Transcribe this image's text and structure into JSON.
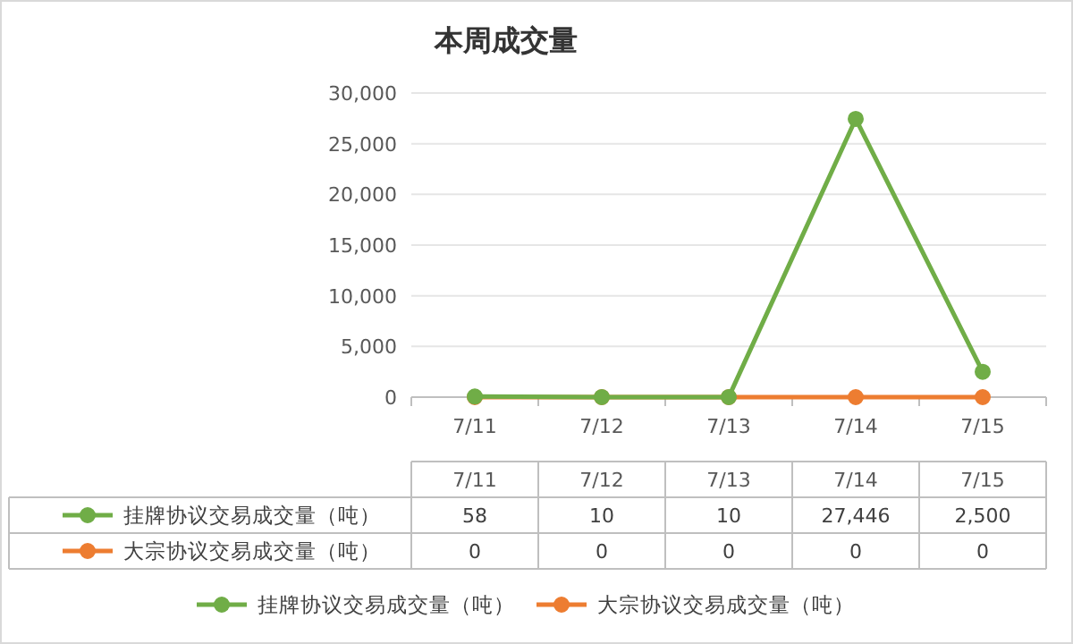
{
  "chart_data": {
    "type": "line",
    "title": "本周成交量",
    "categories": [
      "7/11",
      "7/12",
      "7/13",
      "7/14",
      "7/15"
    ],
    "series": [
      {
        "name": "挂牌协议交易成交量（吨）",
        "color": "#70ad47",
        "values": [
          58,
          10,
          10,
          27446,
          2500
        ],
        "value_labels": [
          "58",
          "10",
          "10",
          "27,446",
          "2,500"
        ]
      },
      {
        "name": "大宗协议交易成交量（吨）",
        "color": "#ed7d31",
        "values": [
          0,
          0,
          0,
          0,
          0
        ],
        "value_labels": [
          "0",
          "0",
          "0",
          "0",
          "0"
        ]
      }
    ],
    "ylim": [
      0,
      30000
    ],
    "yticks": [
      {
        "value": 0,
        "label": "0"
      },
      {
        "value": 5000,
        "label": "5,000"
      },
      {
        "value": 10000,
        "label": "10,000"
      },
      {
        "value": 15000,
        "label": "15,000"
      },
      {
        "value": 20000,
        "label": "20,000"
      },
      {
        "value": 25000,
        "label": "25,000"
      },
      {
        "value": 30000,
        "label": "30,000"
      }
    ],
    "grid": "y",
    "legend": "bottom",
    "marker": "circle",
    "line_style": "solid"
  }
}
